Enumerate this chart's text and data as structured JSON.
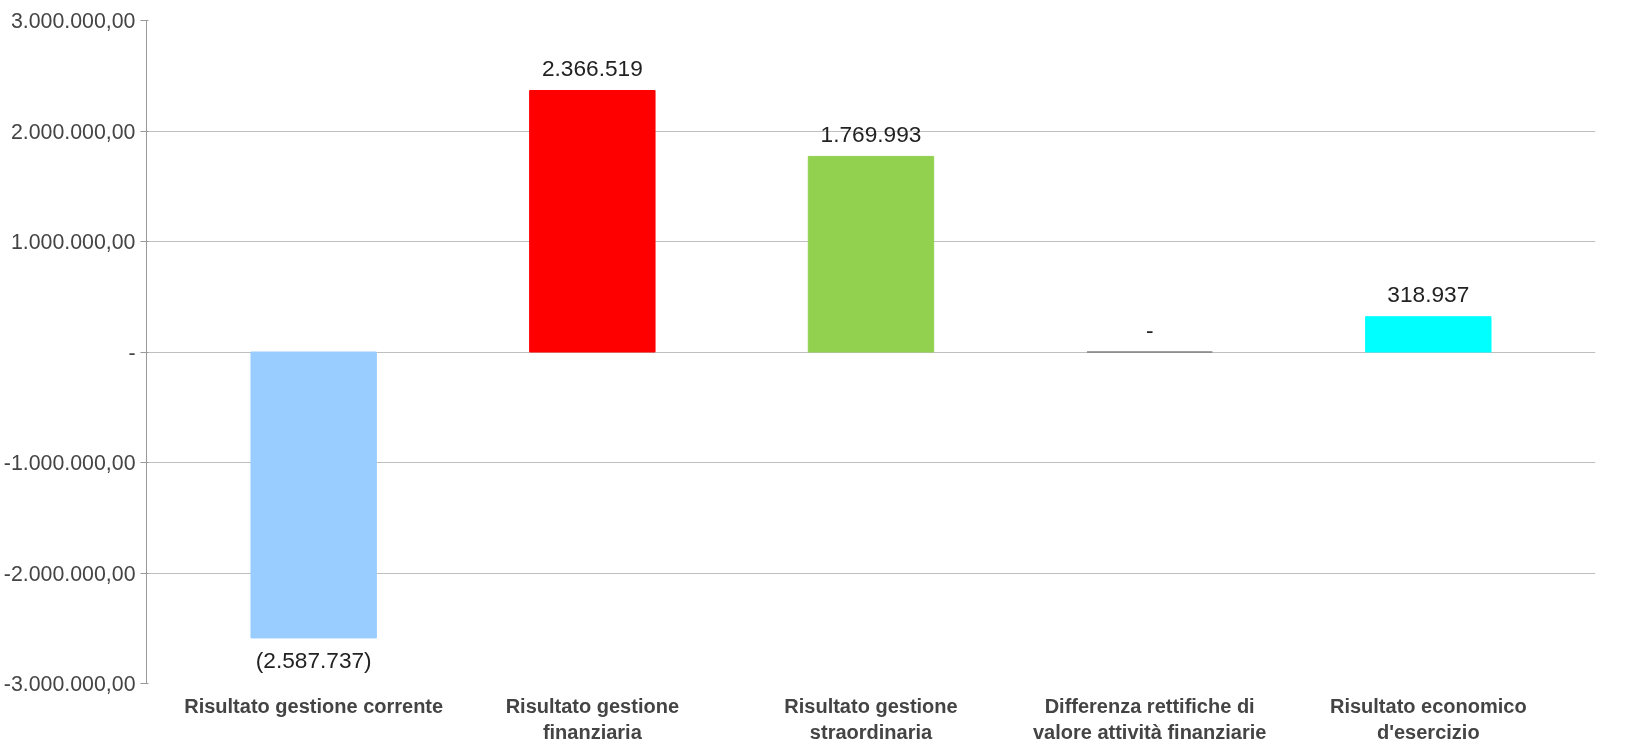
{
  "chart_data": {
    "type": "bar",
    "categories": [
      "Risultato gestione corrente",
      "Risultato gestione finanziaria",
      "Risultato gestione straordinaria",
      "Differenza rettifiche di valore attività finanziarie",
      "Risultato economico d'esercizio"
    ],
    "values": [
      -2587737,
      2366519,
      1769993,
      0,
      318937
    ],
    "colors": [
      "#99ccff",
      "#ff0000",
      "#92d050",
      "#808080",
      "#00ffff"
    ],
    "value_labels": [
      "(2.587.737)",
      "2.366.519",
      "1.769.993",
      "-",
      "318.937"
    ],
    "ylim": [
      -3000000,
      3000000
    ],
    "yticks": [
      {
        "value": -3000000,
        "label": "-3.000.000,00"
      },
      {
        "value": -2000000,
        "label": "-2.000.000,00"
      },
      {
        "value": -1000000,
        "label": "-1.000.000,00"
      },
      {
        "value": 0,
        "label": "-"
      },
      {
        "value": 1000000,
        "label": "1.000.000,00"
      },
      {
        "value": 2000000,
        "label": "2.000.000,00"
      },
      {
        "value": 3000000,
        "label": "3.000.000,00"
      }
    ],
    "grid": "y"
  }
}
